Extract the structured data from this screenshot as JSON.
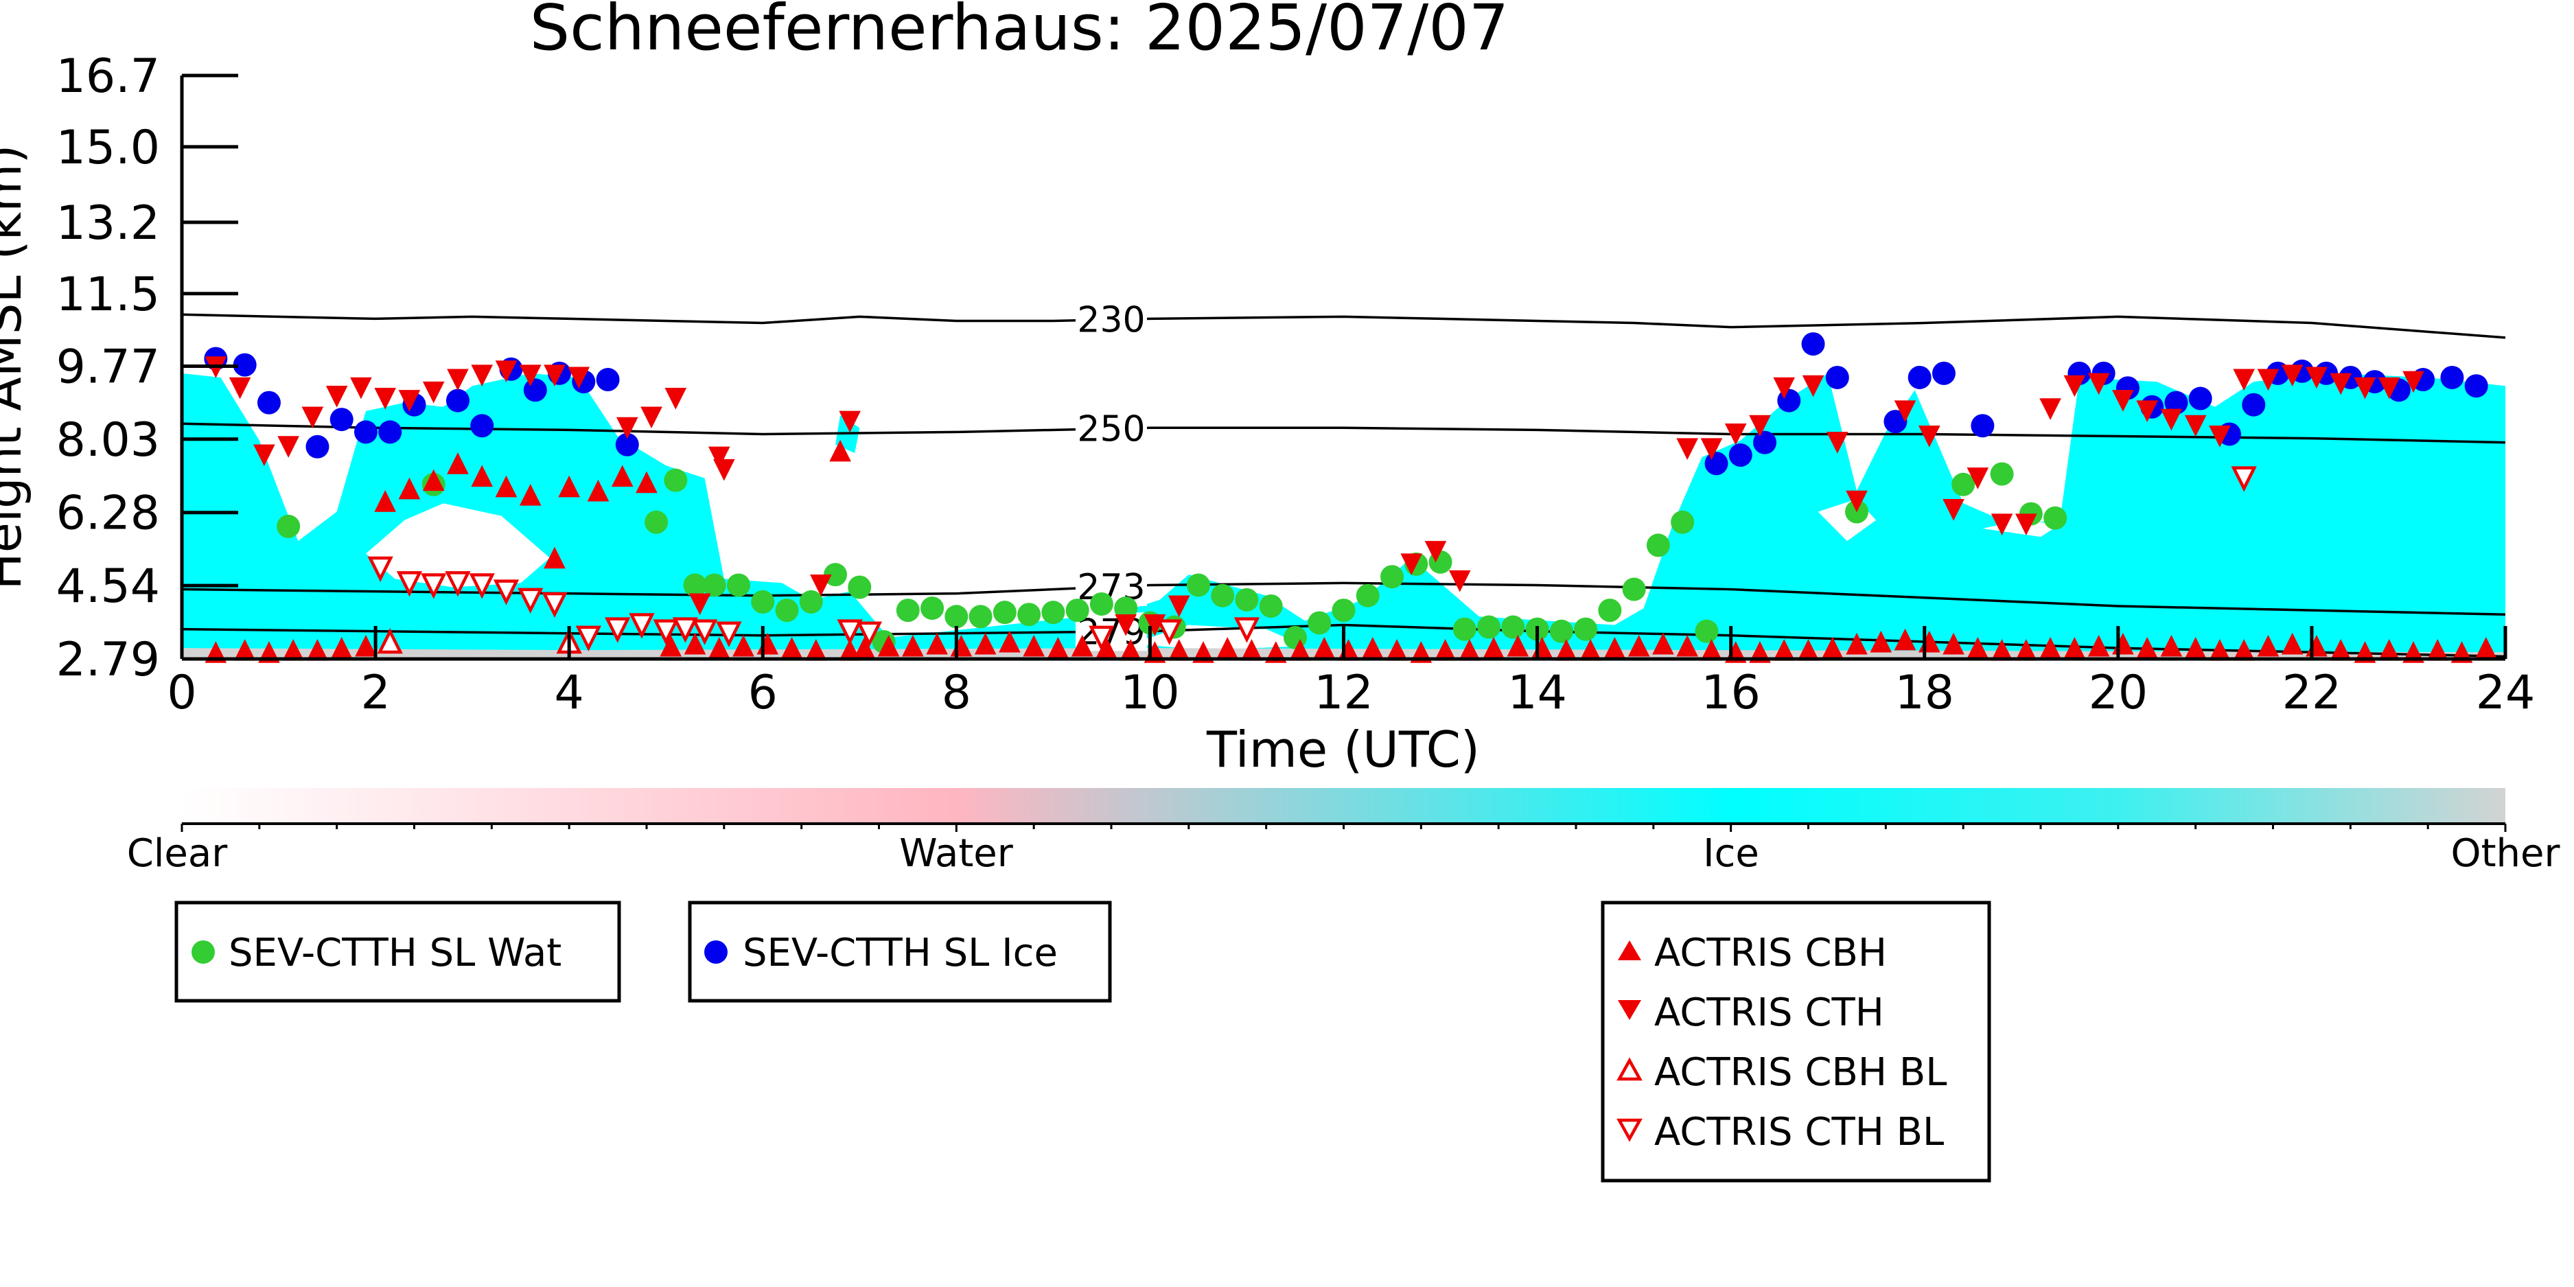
{
  "chart_data": {
    "type": "scatter",
    "title": "Schneefernerhaus: 2025/07/07",
    "xlabel": "Time (UTC)",
    "ylabel": "Height AMSL (km)",
    "xlim": [
      0,
      24
    ],
    "ylim": [
      2.79,
      16.7
    ],
    "x_ticks": [
      "0",
      "2",
      "4",
      "6",
      "8",
      "10",
      "12",
      "14",
      "16",
      "18",
      "20",
      "22",
      "24"
    ],
    "y_ticks": [
      "2.79",
      "4.54",
      "6.28",
      "8.03",
      "9.77",
      "11.5",
      "13.2",
      "15.0",
      "16.7"
    ],
    "colorbar": {
      "labels": [
        "Clear",
        "Water",
        "Ice",
        "Other"
      ],
      "colors": [
        "#ffffff",
        "#ffb6c1",
        "#00ffff",
        "#d3d3d3"
      ]
    },
    "cloud_mask_color": "#00ffff",
    "isotherms": [
      {
        "label": "230",
        "x": [
          0,
          2,
          3,
          4,
          5,
          6,
          7,
          8,
          9,
          10,
          12,
          13,
          14,
          15,
          16,
          18,
          20,
          22,
          24
        ],
        "y": [
          11.0,
          10.9,
          10.95,
          10.9,
          10.85,
          10.8,
          10.95,
          10.85,
          10.85,
          10.9,
          10.95,
          10.9,
          10.85,
          10.8,
          10.7,
          10.8,
          10.95,
          10.8,
          10.45
        ]
      },
      {
        "label": "250",
        "x": [
          0,
          2,
          4,
          6,
          8,
          10,
          12,
          14,
          16,
          18,
          20,
          22,
          24
        ],
        "y": [
          8.4,
          8.3,
          8.25,
          8.15,
          8.2,
          8.3,
          8.3,
          8.25,
          8.15,
          8.15,
          8.1,
          8.05,
          7.95
        ]
      },
      {
        "label": "273",
        "x": [
          0,
          2,
          4,
          6,
          8,
          10,
          12,
          14,
          16,
          18,
          20,
          22,
          24
        ],
        "y": [
          4.45,
          4.4,
          4.35,
          4.3,
          4.35,
          4.55,
          4.6,
          4.55,
          4.45,
          4.25,
          4.05,
          3.95,
          3.85
        ]
      },
      {
        "label": "279",
        "x": [
          0,
          2,
          4,
          6,
          8,
          10,
          12,
          14,
          16,
          18,
          20,
          22,
          24
        ],
        "y": [
          3.5,
          3.45,
          3.4,
          3.35,
          3.4,
          3.45,
          3.6,
          3.45,
          3.35,
          3.2,
          3.05,
          2.95,
          2.85
        ]
      }
    ],
    "series": [
      {
        "name": "SEV-CTTH SL Wat",
        "marker": "circle",
        "color": "#33cc33",
        "x": [
          1.1,
          2.6,
          4.9,
          5.1,
          5.3,
          5.5,
          5.75,
          6.0,
          6.25,
          6.5,
          6.75,
          7.0,
          7.25,
          7.5,
          7.75,
          8.0,
          8.25,
          8.5,
          8.75,
          9.0,
          9.25,
          9.5,
          9.75,
          10.0,
          10.25,
          10.5,
          10.75,
          11.0,
          11.25,
          11.5,
          11.75,
          12.0,
          12.25,
          12.5,
          12.75,
          13.0,
          13.25,
          13.5,
          13.75,
          14.0,
          14.25,
          14.5,
          14.75,
          15.0,
          15.25,
          15.5,
          15.75,
          17.3,
          18.4,
          18.8,
          19.1,
          19.35
        ],
        "y": [
          5.95,
          6.95,
          6.05,
          7.05,
          4.55,
          4.55,
          4.55,
          4.15,
          3.95,
          4.15,
          4.8,
          4.5,
          3.2,
          3.95,
          4.0,
          3.8,
          3.8,
          3.9,
          3.85,
          3.9,
          3.95,
          4.1,
          4.0,
          3.65,
          3.55,
          4.55,
          4.3,
          4.2,
          4.05,
          3.3,
          3.65,
          3.95,
          4.3,
          4.75,
          5.05,
          5.1,
          3.5,
          3.55,
          3.55,
          3.5,
          3.45,
          3.5,
          3.95,
          4.45,
          5.5,
          6.05,
          3.45,
          6.3,
          6.95,
          7.2,
          6.25,
          6.15
        ]
      },
      {
        "name": "SEV-CTTH SL Ice",
        "marker": "circle",
        "color": "#0000ee",
        "x": [
          0.35,
          0.65,
          0.9,
          1.4,
          1.65,
          1.9,
          2.15,
          2.4,
          2.85,
          3.1,
          3.4,
          3.65,
          3.9,
          4.15,
          4.4,
          4.6,
          15.85,
          16.1,
          16.35,
          16.6,
          16.85,
          17.1,
          17.7,
          17.95,
          18.2,
          18.6,
          19.6,
          19.85,
          20.1,
          20.35,
          20.6,
          20.85,
          21.15,
          21.4,
          21.65,
          21.9,
          22.15,
          22.4,
          22.65,
          22.9,
          23.15,
          23.45,
          23.7
        ],
        "y": [
          9.95,
          9.8,
          8.9,
          7.85,
          8.5,
          8.2,
          8.2,
          8.85,
          8.95,
          8.35,
          9.7,
          9.2,
          9.6,
          9.4,
          9.45,
          7.9,
          7.45,
          7.65,
          7.95,
          8.95,
          10.3,
          9.5,
          8.45,
          9.5,
          9.6,
          8.35,
          9.6,
          9.6,
          9.25,
          8.8,
          8.9,
          9.0,
          8.15,
          8.85,
          9.6,
          9.65,
          9.6,
          9.5,
          9.4,
          9.2,
          9.45,
          9.5,
          9.3
        ]
      },
      {
        "name": "ACTRIS CBH",
        "marker": "triangle-up",
        "color": "#ee0000",
        "filled": true,
        "x": [
          0.35,
          0.65,
          0.9,
          1.15,
          1.4,
          1.65,
          1.9,
          2.1,
          2.35,
          2.6,
          2.85,
          3.1,
          3.35,
          3.6,
          3.85,
          4.0,
          4.3,
          4.55,
          4.8,
          5.05,
          5.3,
          5.55,
          5.8,
          6.05,
          6.3,
          6.55,
          6.8,
          6.9,
          7.05,
          7.3,
          7.55,
          7.8,
          8.05,
          8.3,
          8.55,
          8.8,
          9.05,
          9.3,
          9.55,
          9.8,
          10.05,
          10.3,
          10.55,
          10.8,
          11.05,
          11.3,
          11.55,
          11.8,
          12.05,
          12.3,
          12.55,
          12.8,
          13.05,
          13.3,
          13.55,
          13.8,
          14.05,
          14.3,
          14.55,
          14.8,
          15.05,
          15.3,
          15.55,
          15.8,
          16.05,
          16.3,
          16.55,
          16.8,
          17.05,
          17.3,
          17.55,
          17.8,
          18.05,
          18.3,
          18.55,
          18.8,
          19.05,
          19.3,
          19.55,
          19.8,
          20.05,
          20.3,
          20.55,
          20.8,
          21.05,
          21.3,
          21.55,
          21.8,
          22.05,
          22.3,
          22.55,
          22.8,
          23.05,
          23.3,
          23.55,
          23.8
        ],
        "y": [
          2.95,
          3.0,
          2.95,
          3.0,
          3.0,
          3.05,
          3.1,
          6.55,
          6.85,
          7.05,
          7.45,
          7.15,
          6.9,
          6.7,
          5.2,
          6.9,
          6.8,
          7.15,
          7.0,
          3.1,
          3.15,
          3.05,
          3.1,
          3.15,
          3.05,
          3.0,
          7.75,
          3.0,
          3.05,
          3.1,
          3.1,
          3.15,
          3.1,
          3.15,
          3.2,
          3.1,
          3.05,
          3.1,
          3.05,
          3.0,
          2.95,
          3.0,
          2.95,
          3.05,
          3.0,
          2.95,
          3.0,
          3.05,
          3.0,
          3.05,
          3.0,
          2.95,
          3.0,
          3.0,
          3.05,
          3.1,
          3.05,
          3.0,
          3.0,
          3.05,
          3.1,
          3.15,
          3.1,
          3.0,
          2.95,
          2.95,
          3.0,
          3.0,
          3.05,
          3.15,
          3.2,
          3.25,
          3.2,
          3.15,
          3.05,
          3.0,
          3.0,
          3.05,
          3.05,
          3.1,
          3.15,
          3.05,
          3.1,
          3.05,
          3.0,
          3.0,
          3.1,
          3.15,
          3.1,
          3.0,
          2.95,
          3.0,
          2.95,
          3.0,
          2.95,
          3.05
        ]
      },
      {
        "name": "ACTRIS CTH",
        "marker": "triangle-down",
        "color": "#ee0000",
        "filled": true,
        "x": [
          0.35,
          0.6,
          0.85,
          1.1,
          1.35,
          1.6,
          1.85,
          2.1,
          2.35,
          2.6,
          2.85,
          3.1,
          3.35,
          3.6,
          3.85,
          4.1,
          4.6,
          4.85,
          5.1,
          5.35,
          5.55,
          5.6,
          6.6,
          6.9,
          9.75,
          10.05,
          10.3,
          12.7,
          12.95,
          13.2,
          15.55,
          15.8,
          16.05,
          16.3,
          16.55,
          16.85,
          17.1,
          17.3,
          17.8,
          18.05,
          18.3,
          18.55,
          18.8,
          19.05,
          19.3,
          19.55,
          19.8,
          20.05,
          20.3,
          20.55,
          20.8,
          21.05,
          21.3,
          21.55,
          21.8,
          22.05,
          22.3,
          22.55,
          22.8,
          23.05
        ],
        "y": [
          9.75,
          9.25,
          7.65,
          7.85,
          8.55,
          9.05,
          9.25,
          9.0,
          8.95,
          9.15,
          9.45,
          9.55,
          9.65,
          9.55,
          9.55,
          9.5,
          8.3,
          8.55,
          9.0,
          4.1,
          7.6,
          7.3,
          4.55,
          8.45,
          3.6,
          3.6,
          4.05,
          5.05,
          5.35,
          4.65,
          7.8,
          7.8,
          8.15,
          8.35,
          9.25,
          9.3,
          7.95,
          6.55,
          8.7,
          8.1,
          6.35,
          7.1,
          6.0,
          6.0,
          8.75,
          9.3,
          9.35,
          8.95,
          8.7,
          8.5,
          8.35,
          8.1,
          9.45,
          9.45,
          9.55,
          9.5,
          9.35,
          9.25,
          9.25,
          9.4
        ]
      },
      {
        "name": "ACTRIS CBH BL",
        "marker": "triangle-up",
        "color": "#ee0000",
        "filled": false,
        "x": [
          2.15,
          4.0
        ],
        "y": [
          3.2,
          3.2
        ]
      },
      {
        "name": "ACTRIS CTH BL",
        "marker": "triangle-down",
        "color": "#ee0000",
        "filled": false,
        "x": [
          2.05,
          2.35,
          2.6,
          2.85,
          3.1,
          3.35,
          3.6,
          3.85,
          4.2,
          4.5,
          4.75,
          5.0,
          5.2,
          5.4,
          5.65,
          6.9,
          7.1,
          9.5,
          10.2,
          11.0,
          21.3
        ],
        "y": [
          4.95,
          4.6,
          4.55,
          4.6,
          4.55,
          4.4,
          4.2,
          4.1,
          3.3,
          3.5,
          3.6,
          3.45,
          3.5,
          3.45,
          3.4,
          3.45,
          3.4,
          3.3,
          3.45,
          3.5,
          7.1
        ]
      }
    ],
    "legend_groups": [
      [
        "SEV-CTTH SL Wat"
      ],
      [
        "SEV-CTTH SL Ice"
      ],
      [
        "ACTRIS CBH",
        "ACTRIS CTH",
        "ACTRIS CBH BL",
        "ACTRIS CTH BL"
      ]
    ]
  }
}
